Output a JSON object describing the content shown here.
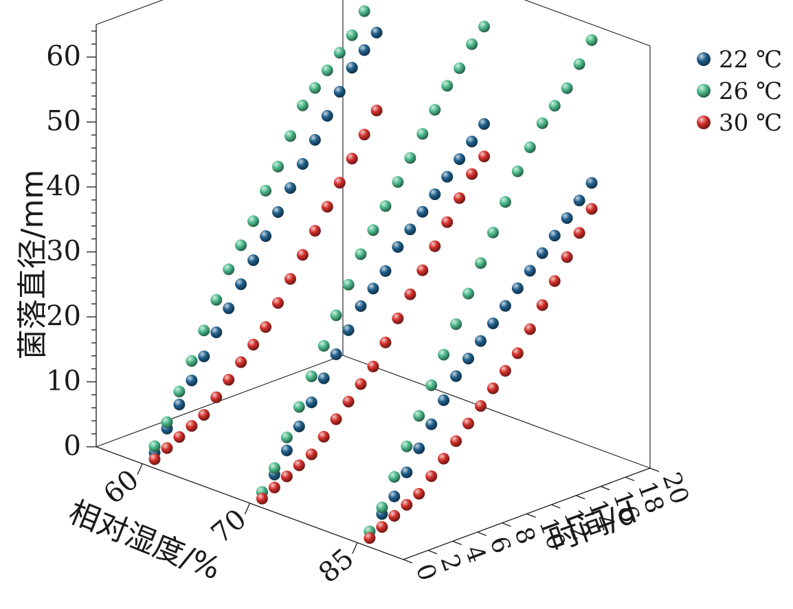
{
  "chart_data": {
    "type": "scatter",
    "dimensions": "3d",
    "title": "",
    "xlabel": "相对湿度/%",
    "ylabel": "时间/d",
    "zlabel": "菌落直径/mm",
    "x_categories": [
      "60",
      "70",
      "85"
    ],
    "y_ticks": [
      "0",
      "2",
      "4",
      "6",
      "8",
      "10",
      "12",
      "14",
      "16",
      "18",
      "20"
    ],
    "z_ticks": [
      "0",
      "10",
      "20",
      "30",
      "40",
      "50",
      "60"
    ],
    "ylim": [
      0,
      20
    ],
    "zlim": [
      0,
      60
    ],
    "legend_position": "top-right",
    "days": [
      1,
      2,
      3,
      4,
      5,
      6,
      7,
      8,
      9,
      10,
      11,
      12,
      13,
      14,
      15,
      16,
      17,
      18,
      19
    ],
    "series": [
      {
        "name": "22 ℃",
        "color": "#1f5f8b",
        "values": {
          "60": [
            1,
            4,
            7,
            10,
            13,
            16,
            19,
            22,
            25,
            28,
            31,
            34,
            37,
            40,
            43,
            46,
            49,
            51,
            53
          ],
          "70": [
            1,
            3,
            6,
            9,
            12,
            15,
            18,
            21,
            24,
            26,
            28,
            31,
            33,
            35,
            37,
            39,
            41,
            43,
            45
          ],
          "85": [
            1,
            3,
            5,
            8,
            11,
            14,
            17,
            20,
            22,
            24,
            26,
            28,
            30,
            32,
            34,
            36,
            38,
            40,
            42
          ]
        }
      },
      {
        "name": "26 ℃",
        "color": "#4cb98a",
        "values": {
          "60": [
            2,
            5,
            9,
            13,
            17,
            21,
            25,
            28,
            31,
            35,
            38,
            42,
            46,
            48,
            50,
            52,
            54,
            57,
            59
          ],
          "70": [
            1,
            4,
            8,
            12,
            16,
            20,
            24,
            28,
            32,
            35,
            38,
            41,
            44,
            47,
            50,
            53,
            55,
            58,
            60
          ],
          "85": [
            1,
            4,
            8,
            12,
            16,
            20,
            24,
            28,
            32,
            36,
            40,
            44,
            48,
            51,
            54,
            56,
            58,
            61,
            64
          ]
        }
      },
      {
        "name": "30 ℃",
        "color": "#d22f2a",
        "values": {
          "60": [
            0,
            1,
            2,
            3,
            4,
            6,
            8,
            10,
            12,
            14,
            17,
            20,
            23,
            26,
            29,
            32,
            35,
            38,
            41
          ],
          "70": [
            0,
            1,
            2,
            3,
            4,
            6,
            8,
            10,
            12,
            14,
            17,
            20,
            23,
            26,
            29,
            32,
            35,
            38,
            40
          ],
          "85": [
            0,
            1,
            2,
            3,
            4,
            6,
            8,
            10,
            12,
            14,
            16,
            18,
            20,
            23,
            26,
            29,
            32,
            35,
            38
          ]
        }
      }
    ]
  }
}
